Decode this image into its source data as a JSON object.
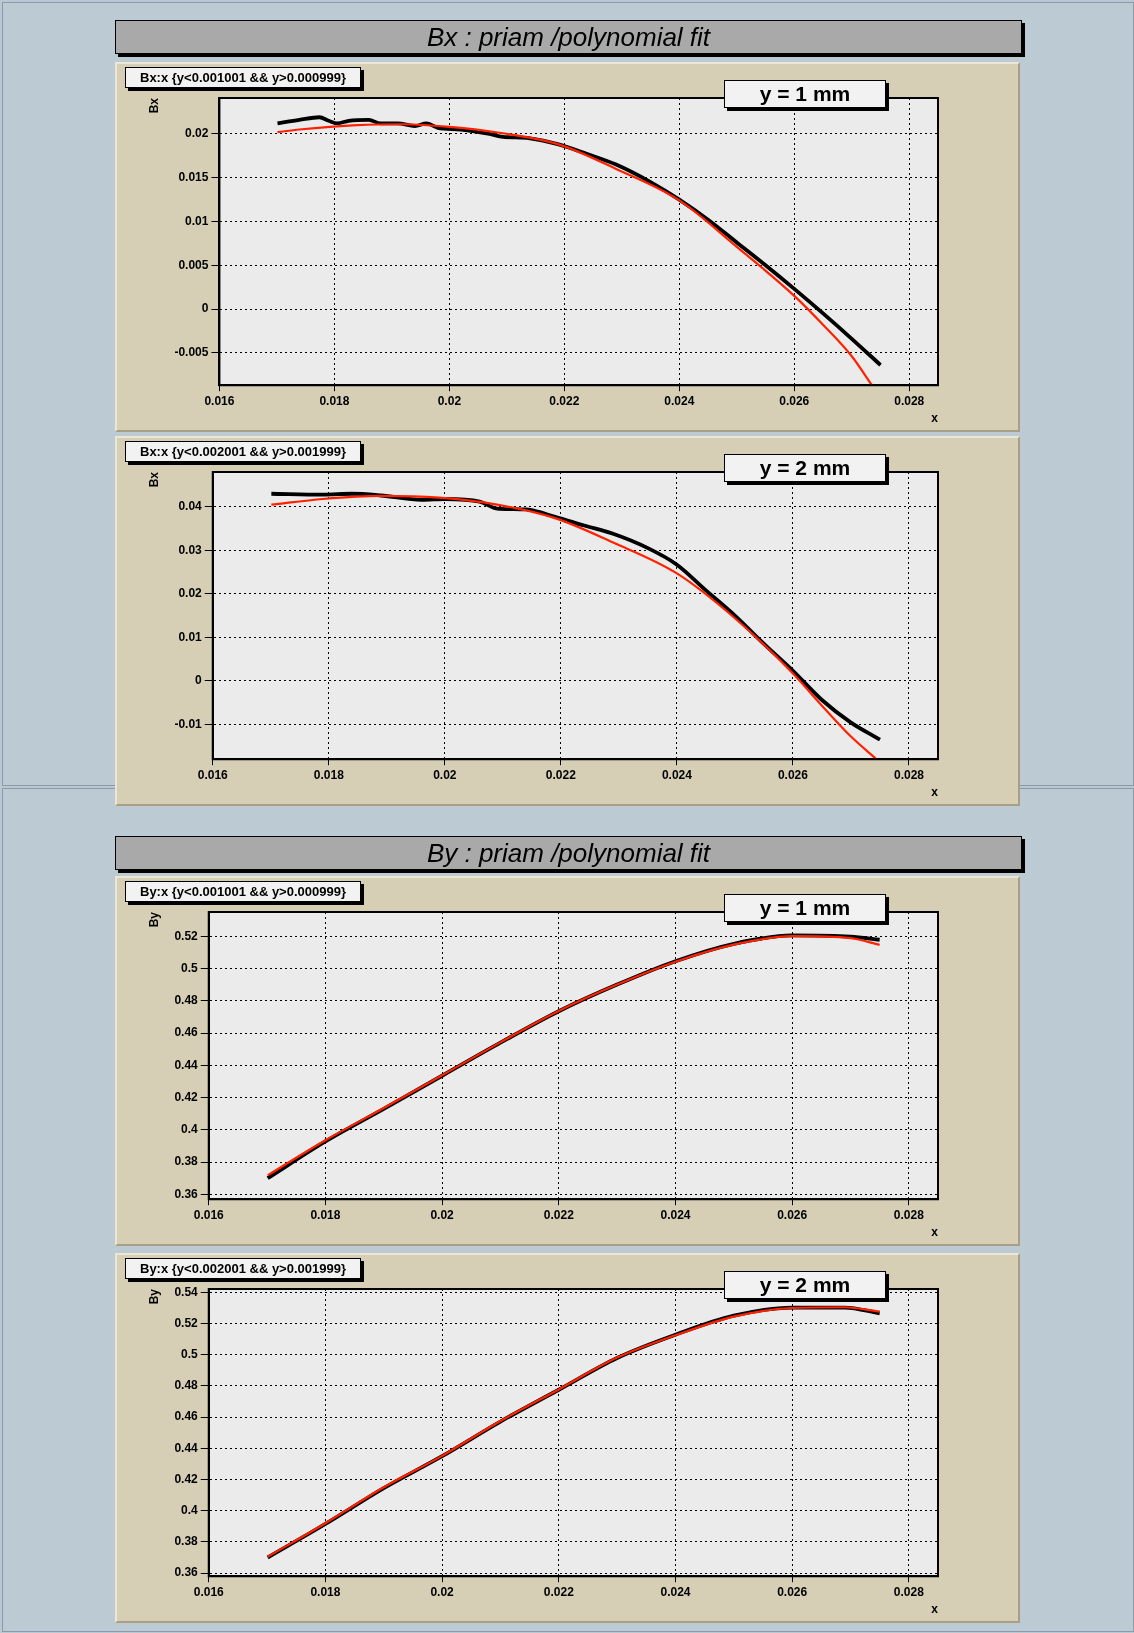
{
  "chart_data": [
    {
      "type": "line",
      "title": "Bx : priam  /polynomial  fit",
      "subtitle": "Bx:x {y<0.001001 && y>0.000999}",
      "xlabel": "x",
      "ylabel": "Bx",
      "annotations": [
        "y = 1 mm"
      ],
      "xlim": [
        0.016,
        0.0285
      ],
      "ylim": [
        -0.0087,
        0.0241
      ],
      "xticks": [
        0.016,
        0.018,
        0.02,
        0.022,
        0.024,
        0.026,
        0.028
      ],
      "yticks": [
        -0.005,
        0,
        0.005,
        0.01,
        0.015,
        0.02
      ],
      "grid": true,
      "series": [
        {
          "color": "#000000",
          "x": [
            0.01701,
            0.01739,
            0.01774,
            0.0179,
            0.01805,
            0.01825,
            0.0186,
            0.0188,
            0.0191,
            0.0194,
            0.0196,
            0.0198,
            0.0202,
            0.0207,
            0.0209,
            0.0214,
            0.0219,
            0.0224,
            0.0229,
            0.0235,
            0.024,
            0.0245,
            0.025,
            0.0255,
            0.026,
            0.0265,
            0.027,
            0.0275
          ],
          "values": [
            0.0212,
            0.0216,
            0.0219,
            0.0215,
            0.0212,
            0.0215,
            0.0216,
            0.0212,
            0.0212,
            0.0209,
            0.0212,
            0.0207,
            0.0205,
            0.02,
            0.0197,
            0.0195,
            0.0188,
            0.0177,
            0.0165,
            0.0145,
            0.0125,
            0.0102,
            0.0076,
            0.005,
            0.0023,
            -0.0005,
            -0.0034,
            -0.0064
          ]
        },
        {
          "color": "#ff2200",
          "x": [
            0.01701,
            0.01739,
            0.0184,
            0.0192,
            0.02,
            0.0209,
            0.0219,
            0.0229,
            0.024,
            0.025,
            0.026,
            0.0265,
            0.027,
            0.02735
          ],
          "values": [
            0.0202,
            0.0205,
            0.021,
            0.0211,
            0.0208,
            0.0201,
            0.0188,
            0.016,
            0.0124,
            0.0071,
            0.0015,
            -0.0018,
            -0.0054,
            -0.0087
          ]
        }
      ]
    },
    {
      "type": "line",
      "subtitle": "Bx:x {y<0.002001 && y>0.001999}",
      "xlabel": "x",
      "ylabel": "Bx",
      "annotations": [
        "y = 2 mm"
      ],
      "xlim": [
        0.016,
        0.0285
      ],
      "ylim": [
        -0.018,
        0.048
      ],
      "xticks": [
        0.016,
        0.018,
        0.02,
        0.022,
        0.024,
        0.026,
        0.028
      ],
      "yticks": [
        -0.01,
        0,
        0.01,
        0.02,
        0.03,
        0.04
      ],
      "grid": true,
      "series": [
        {
          "color": "#000000",
          "x": [
            0.01701,
            0.0179,
            0.0184,
            0.0189,
            0.0196,
            0.02,
            0.0206,
            0.0209,
            0.0214,
            0.0219,
            0.0224,
            0.0229,
            0.0235,
            0.024,
            0.0245,
            0.025,
            0.0255,
            0.026,
            0.0265,
            0.027,
            0.0275
          ],
          "values": [
            0.043,
            0.0428,
            0.043,
            0.0426,
            0.0416,
            0.0418,
            0.0412,
            0.0396,
            0.0394,
            0.0377,
            0.0357,
            0.0338,
            0.0305,
            0.0267,
            0.0208,
            0.015,
            0.0085,
            0.0023,
            -0.0044,
            -0.0096,
            -0.0135
          ]
        },
        {
          "color": "#ff2200",
          "x": [
            0.01701,
            0.0179,
            0.0189,
            0.0199,
            0.0209,
            0.0219,
            0.0229,
            0.024,
            0.025,
            0.026,
            0.0265,
            0.027,
            0.02744
          ],
          "values": [
            0.0405,
            0.0418,
            0.0425,
            0.0421,
            0.0405,
            0.0374,
            0.0318,
            0.0247,
            0.0144,
            0.0017,
            -0.0057,
            -0.0128,
            -0.018
          ]
        }
      ]
    },
    {
      "type": "line",
      "title": "By : priam  /polynomial  fit",
      "subtitle": "By:x {y<0.001001 && y>0.000999}",
      "xlabel": "x",
      "ylabel": "By",
      "annotations": [
        "y = 1 mm"
      ],
      "xlim": [
        0.016,
        0.0285
      ],
      "ylim": [
        0.357,
        0.535
      ],
      "xticks": [
        0.016,
        0.018,
        0.02,
        0.022,
        0.024,
        0.026,
        0.028
      ],
      "yticks": [
        0.36,
        0.38,
        0.4,
        0.42,
        0.44,
        0.46,
        0.48,
        0.5,
        0.52
      ],
      "grid": true,
      "series": [
        {
          "color": "#000000",
          "x": [
            0.01701,
            0.018,
            0.019,
            0.02,
            0.021,
            0.022,
            0.023,
            0.024,
            0.025,
            0.026,
            0.027,
            0.0275
          ],
          "values": [
            0.37,
            0.3928,
            0.413,
            0.4335,
            0.454,
            0.4735,
            0.49,
            0.5045,
            0.5153,
            0.5205,
            0.5198,
            0.5178
          ]
        },
        {
          "color": "#ff2200",
          "x": [
            0.01701,
            0.018,
            0.019,
            0.02,
            0.021,
            0.022,
            0.023,
            0.024,
            0.025,
            0.026,
            0.027,
            0.0275
          ],
          "values": [
            0.3718,
            0.3935,
            0.4135,
            0.4338,
            0.4542,
            0.4737,
            0.49,
            0.5042,
            0.5148,
            0.52,
            0.5188,
            0.5146
          ]
        }
      ]
    },
    {
      "type": "line",
      "subtitle": "By:x {y<0.002001 && y>0.001999}",
      "xlabel": "x",
      "ylabel": "By",
      "annotations": [
        "y = 2 mm"
      ],
      "xlim": [
        0.016,
        0.0285
      ],
      "ylim": [
        0.358,
        0.5422
      ],
      "xticks": [
        0.016,
        0.018,
        0.02,
        0.022,
        0.024,
        0.026,
        0.028
      ],
      "yticks": [
        0.36,
        0.38,
        0.4,
        0.42,
        0.44,
        0.46,
        0.48,
        0.5,
        0.52,
        0.54
      ],
      "grid": true,
      "series": [
        {
          "color": "#000000",
          "x": [
            0.01701,
            0.018,
            0.019,
            0.02,
            0.021,
            0.022,
            0.023,
            0.024,
            0.025,
            0.026,
            0.0269,
            0.0275
          ],
          "values": [
            0.37,
            0.3915,
            0.4145,
            0.435,
            0.4572,
            0.4776,
            0.498,
            0.5129,
            0.5251,
            0.5303,
            0.5303,
            0.5266
          ]
        },
        {
          "color": "#ff2200",
          "x": [
            0.01701,
            0.018,
            0.019,
            0.02,
            0.021,
            0.022,
            0.023,
            0.024,
            0.025,
            0.026,
            0.0269,
            0.0275
          ],
          "values": [
            0.3705,
            0.392,
            0.415,
            0.4352,
            0.4575,
            0.4778,
            0.4982,
            0.5125,
            0.5245,
            0.53,
            0.5305,
            0.5277
          ]
        }
      ]
    }
  ]
}
